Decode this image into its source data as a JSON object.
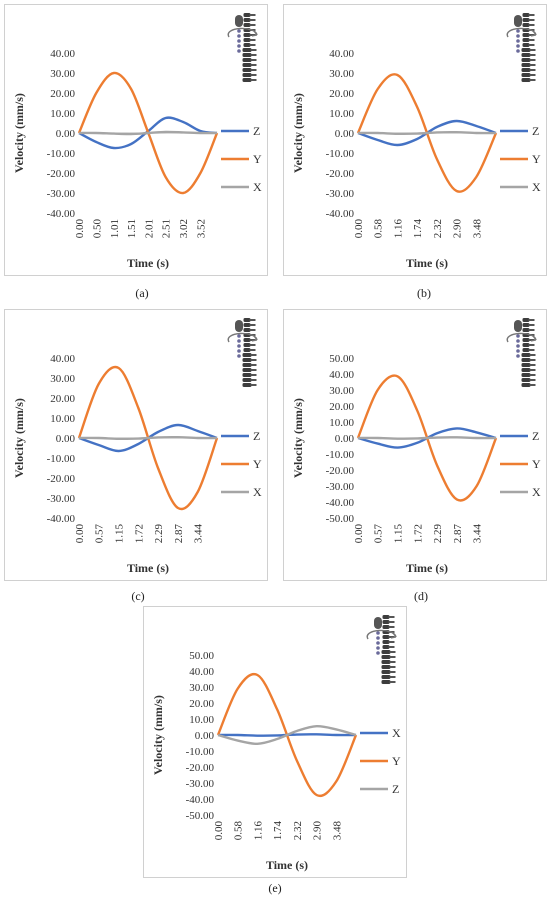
{
  "colors": {
    "blue": "#4472C4",
    "orange": "#ED7D31",
    "gray": "#A5A5A5"
  },
  "icon": "vertebral-column-with-rotation-arrow-icon",
  "chart_data": [
    {
      "type": "line",
      "panel_label": "(a)",
      "xlabel": "Time (s)",
      "ylabel": "Velocity (mm/s)",
      "x_ticks": [
        "0.00",
        "0.50",
        "1.01",
        "1.51",
        "2.01",
        "2.51",
        "3.02",
        "3.52"
      ],
      "y_ticks": [
        "40.00",
        "30.00",
        "20.00",
        "10.00",
        "0.00",
        "-10.00",
        "-20.00",
        "-30.00",
        "-40.00"
      ],
      "ylim": [
        -40,
        40
      ],
      "xlim": [
        0,
        4.0
      ],
      "series": [
        {
          "name": "Z",
          "color": "#4472C4",
          "x": [
            0,
            0.5,
            1.01,
            1.51,
            2.01,
            2.51,
            3.02,
            3.52,
            4.0
          ],
          "y": [
            0,
            -4.5,
            -7.5,
            -5.5,
            1.0,
            7.5,
            5.5,
            1.0,
            0
          ]
        },
        {
          "name": "Y",
          "color": "#ED7D31",
          "x": [
            0,
            0.5,
            1.01,
            1.51,
            2.01,
            2.51,
            3.02,
            3.52,
            4.0
          ],
          "y": [
            0,
            20,
            30,
            22,
            0,
            -22,
            -30,
            -20,
            0
          ]
        },
        {
          "name": "X",
          "color": "#A5A5A5",
          "x": [
            0,
            0.5,
            1.01,
            1.51,
            2.01,
            2.51,
            3.02,
            3.52,
            4.0
          ],
          "y": [
            0,
            0,
            -0.3,
            -0.5,
            0,
            0.5,
            0.3,
            0,
            0
          ]
        }
      ]
    },
    {
      "type": "line",
      "panel_label": "(b)",
      "xlabel": "Time (s)",
      "ylabel": "Velocity (mm/s)",
      "x_ticks": [
        "0.00",
        "0.58",
        "1.16",
        "1.74",
        "2.32",
        "2.90",
        "3.48"
      ],
      "y_ticks": [
        "40.00",
        "30.00",
        "20.00",
        "10.00",
        "0.00",
        "-10.00",
        "-20.00",
        "-30.00",
        "-40.00"
      ],
      "ylim": [
        -40,
        40
      ],
      "xlim": [
        0,
        4.06
      ],
      "series": [
        {
          "name": "Z",
          "color": "#4472C4",
          "x": [
            0,
            0.58,
            1.16,
            1.74,
            2.32,
            2.9,
            3.48,
            4.06
          ],
          "y": [
            0,
            -3.5,
            -6,
            -3,
            3,
            6,
            3.5,
            0
          ]
        },
        {
          "name": "Y",
          "color": "#ED7D31",
          "x": [
            0,
            0.58,
            1.16,
            1.74,
            2.32,
            2.9,
            3.48,
            4.06
          ],
          "y": [
            0,
            22,
            29,
            13,
            -13,
            -29,
            -22,
            0
          ]
        },
        {
          "name": "X",
          "color": "#A5A5A5",
          "x": [
            0,
            0.58,
            1.16,
            1.74,
            2.32,
            2.9,
            3.48,
            4.06
          ],
          "y": [
            0,
            0,
            -0.4,
            -0.3,
            0.3,
            0.4,
            0,
            0
          ]
        }
      ]
    },
    {
      "type": "line",
      "panel_label": "(c)",
      "xlabel": "Time (s)",
      "ylabel": "Velocity (mm/s)",
      "x_ticks": [
        "0.00",
        "0.57",
        "1.15",
        "1.72",
        "2.29",
        "2.87",
        "3.44"
      ],
      "y_ticks": [
        "40.00",
        "30.00",
        "20.00",
        "10.00",
        "0.00",
        "-10.00",
        "-20.00",
        "-30.00",
        "-40.00"
      ],
      "ylim": [
        -40,
        40
      ],
      "xlim": [
        0,
        4.0
      ],
      "series": [
        {
          "name": "Z",
          "color": "#4472C4",
          "x": [
            0,
            0.57,
            1.15,
            1.72,
            2.29,
            2.87,
            3.44,
            4.0
          ],
          "y": [
            0,
            -3.5,
            -6.5,
            -3,
            3,
            6.5,
            3.5,
            0
          ]
        },
        {
          "name": "Y",
          "color": "#ED7D31",
          "x": [
            0,
            0.57,
            1.15,
            1.72,
            2.29,
            2.87,
            3.44,
            4.0
          ],
          "y": [
            0,
            27,
            35,
            15,
            -15,
            -35,
            -27,
            0
          ]
        },
        {
          "name": "X",
          "color": "#A5A5A5",
          "x": [
            0,
            0.57,
            1.15,
            1.72,
            2.29,
            2.87,
            3.44,
            4.0
          ],
          "y": [
            0,
            0,
            -0.4,
            -0.3,
            0.3,
            0.4,
            0,
            0
          ]
        }
      ]
    },
    {
      "type": "line",
      "panel_label": "(d)",
      "xlabel": "Time (s)",
      "ylabel": "Velocity (mm/s)",
      "x_ticks": [
        "0.00",
        "0.57",
        "1.15",
        "1.72",
        "2.29",
        "2.87",
        "3.44"
      ],
      "y_ticks": [
        "50.00",
        "40.00",
        "30.00",
        "20.00",
        "10.00",
        "0.00",
        "-10.00",
        "-20.00",
        "-30.00",
        "-40.00",
        "-50.00"
      ],
      "ylim": [
        -50,
        50
      ],
      "xlim": [
        0,
        4.0
      ],
      "series": [
        {
          "name": "Z",
          "color": "#4472C4",
          "x": [
            0,
            0.57,
            1.15,
            1.72,
            2.29,
            2.87,
            3.44,
            4.0
          ],
          "y": [
            0,
            -3.5,
            -6,
            -3,
            3,
            6,
            3.5,
            0
          ]
        },
        {
          "name": "Y",
          "color": "#ED7D31",
          "x": [
            0,
            0.57,
            1.15,
            1.72,
            2.29,
            2.87,
            3.44,
            4.0
          ],
          "y": [
            0,
            30,
            38.5,
            17,
            -17,
            -38.5,
            -30,
            0
          ]
        },
        {
          "name": "X",
          "color": "#A5A5A5",
          "x": [
            0,
            0.57,
            1.15,
            1.72,
            2.29,
            2.87,
            3.44,
            4.0
          ],
          "y": [
            0,
            0,
            -0.4,
            -0.3,
            0.3,
            0.4,
            0,
            0
          ]
        }
      ]
    },
    {
      "type": "line",
      "panel_label": "(e)",
      "xlabel": "Time (s)",
      "ylabel": "Velocity (mm/s)",
      "x_ticks": [
        "0.00",
        "0.58",
        "1.16",
        "1.74",
        "2.32",
        "2.90",
        "3.48"
      ],
      "y_ticks": [
        "50.00",
        "40.00",
        "30.00",
        "20.00",
        "10.00",
        "0.00",
        "-10.00",
        "-20.00",
        "-30.00",
        "-40.00",
        "-50.00"
      ],
      "ylim": [
        -50,
        50
      ],
      "xlim": [
        0,
        4.06
      ],
      "series": [
        {
          "name": "X",
          "color": "#4472C4",
          "x": [
            0,
            0.58,
            1.16,
            1.74,
            2.32,
            2.9,
            3.48,
            4.06
          ],
          "y": [
            0,
            0,
            -0.4,
            -0.3,
            0.3,
            0.4,
            0,
            0
          ]
        },
        {
          "name": "Y",
          "color": "#ED7D31",
          "x": [
            0,
            0.58,
            1.16,
            1.74,
            2.32,
            2.9,
            3.48,
            4.06
          ],
          "y": [
            0,
            29,
            37.5,
            16,
            -16,
            -37.5,
            -29,
            0
          ]
        },
        {
          "name": "Z",
          "color": "#A5A5A5",
          "x": [
            0,
            0.58,
            1.16,
            1.74,
            2.32,
            2.9,
            3.48,
            4.06
          ],
          "y": [
            0,
            -3.5,
            -5.5,
            -2.5,
            2.5,
            5.5,
            3.5,
            0
          ]
        }
      ]
    }
  ]
}
